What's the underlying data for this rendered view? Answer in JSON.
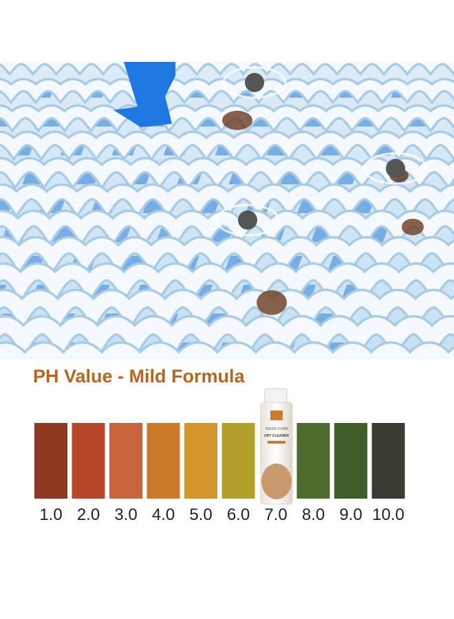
{
  "title": "PH Value - Mild Formula",
  "scale": [
    {
      "label": "1.0",
      "color": "#8e3a22"
    },
    {
      "label": "2.0",
      "color": "#b8472a"
    },
    {
      "label": "3.0",
      "color": "#c9633a"
    },
    {
      "label": "4.0",
      "color": "#cc7a2a"
    },
    {
      "label": "5.0",
      "color": "#d4952a"
    },
    {
      "label": "6.0",
      "color": "#b3a02b"
    },
    {
      "label": "7.0"
    },
    {
      "label": "8.0",
      "color": "#4e6b2e"
    },
    {
      "label": "9.0",
      "color": "#3f5e2a"
    },
    {
      "label": "10.0",
      "color": "#3a3a33"
    }
  ],
  "product": {
    "line1": "SUEDE FOAM",
    "line2": "DRY CLEANER"
  }
}
